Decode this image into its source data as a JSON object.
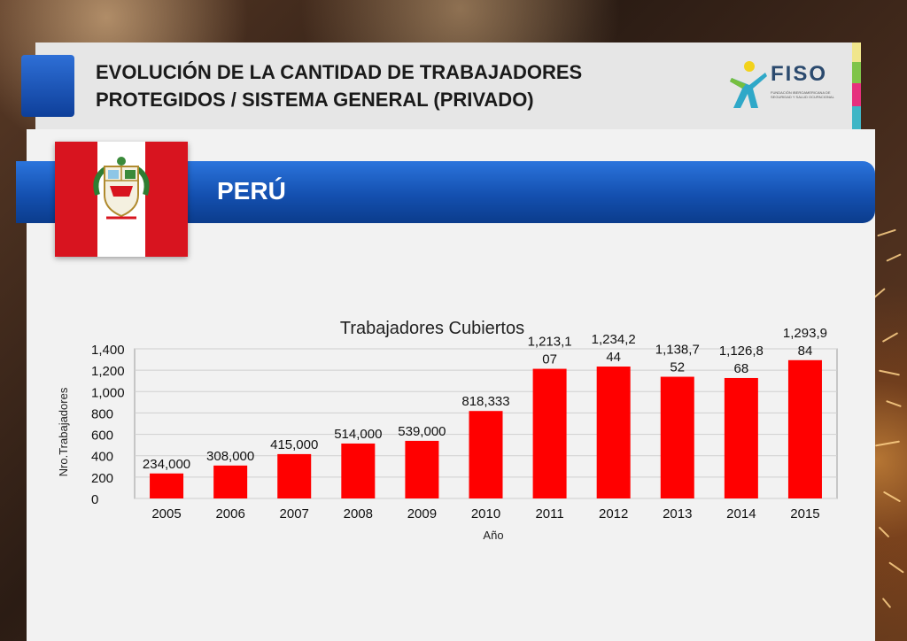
{
  "header": {
    "title_line1": "EVOLUCIÓN DE LA CANTIDAD DE TRABAJADORES",
    "title_line2": "PROTEGIDOS / SISTEMA GENERAL (PRIVADO)",
    "logo_name": "FISO",
    "logo_subtitle": "FUNDACIÓN IBEROAMERICANA DE SEGURIDAD Y SALUD OCUPACIONAL"
  },
  "banner": {
    "country": "PERÚ",
    "flag_icon": "peru-flag-icon"
  },
  "colors": {
    "banner_blue": "#1a5cc4",
    "bar_red": "#ff0000",
    "flag_red": "#d8141f"
  },
  "chart_data": {
    "type": "bar",
    "title": "Trabajadores Cubiertos",
    "xlabel": "Año",
    "ylabel": "Nro.Trabajadores",
    "ylim": [
      0,
      1400
    ],
    "yticks": [
      "0",
      "200",
      "400",
      "600",
      "800",
      "1,000",
      "1,200",
      "1,400"
    ],
    "grid": true,
    "categories": [
      "2005",
      "2006",
      "2007",
      "2008",
      "2009",
      "2010",
      "2011",
      "2012",
      "2013",
      "2014",
      "2015"
    ],
    "values": [
      234,
      308,
      415,
      514,
      539,
      818.333,
      1213.107,
      1234.244,
      1138.752,
      1126.868,
      1293.984
    ],
    "data_labels": [
      [
        "234,000"
      ],
      [
        "308,000"
      ],
      [
        "415,000"
      ],
      [
        "514,000"
      ],
      [
        "539,000"
      ],
      [
        "818,333"
      ],
      [
        "1,213,1",
        "07"
      ],
      [
        "1,234,2",
        "44"
      ],
      [
        "1,138,7",
        "52"
      ],
      [
        "1,126,8",
        "68"
      ],
      [
        "1,293,9",
        "84"
      ]
    ]
  }
}
